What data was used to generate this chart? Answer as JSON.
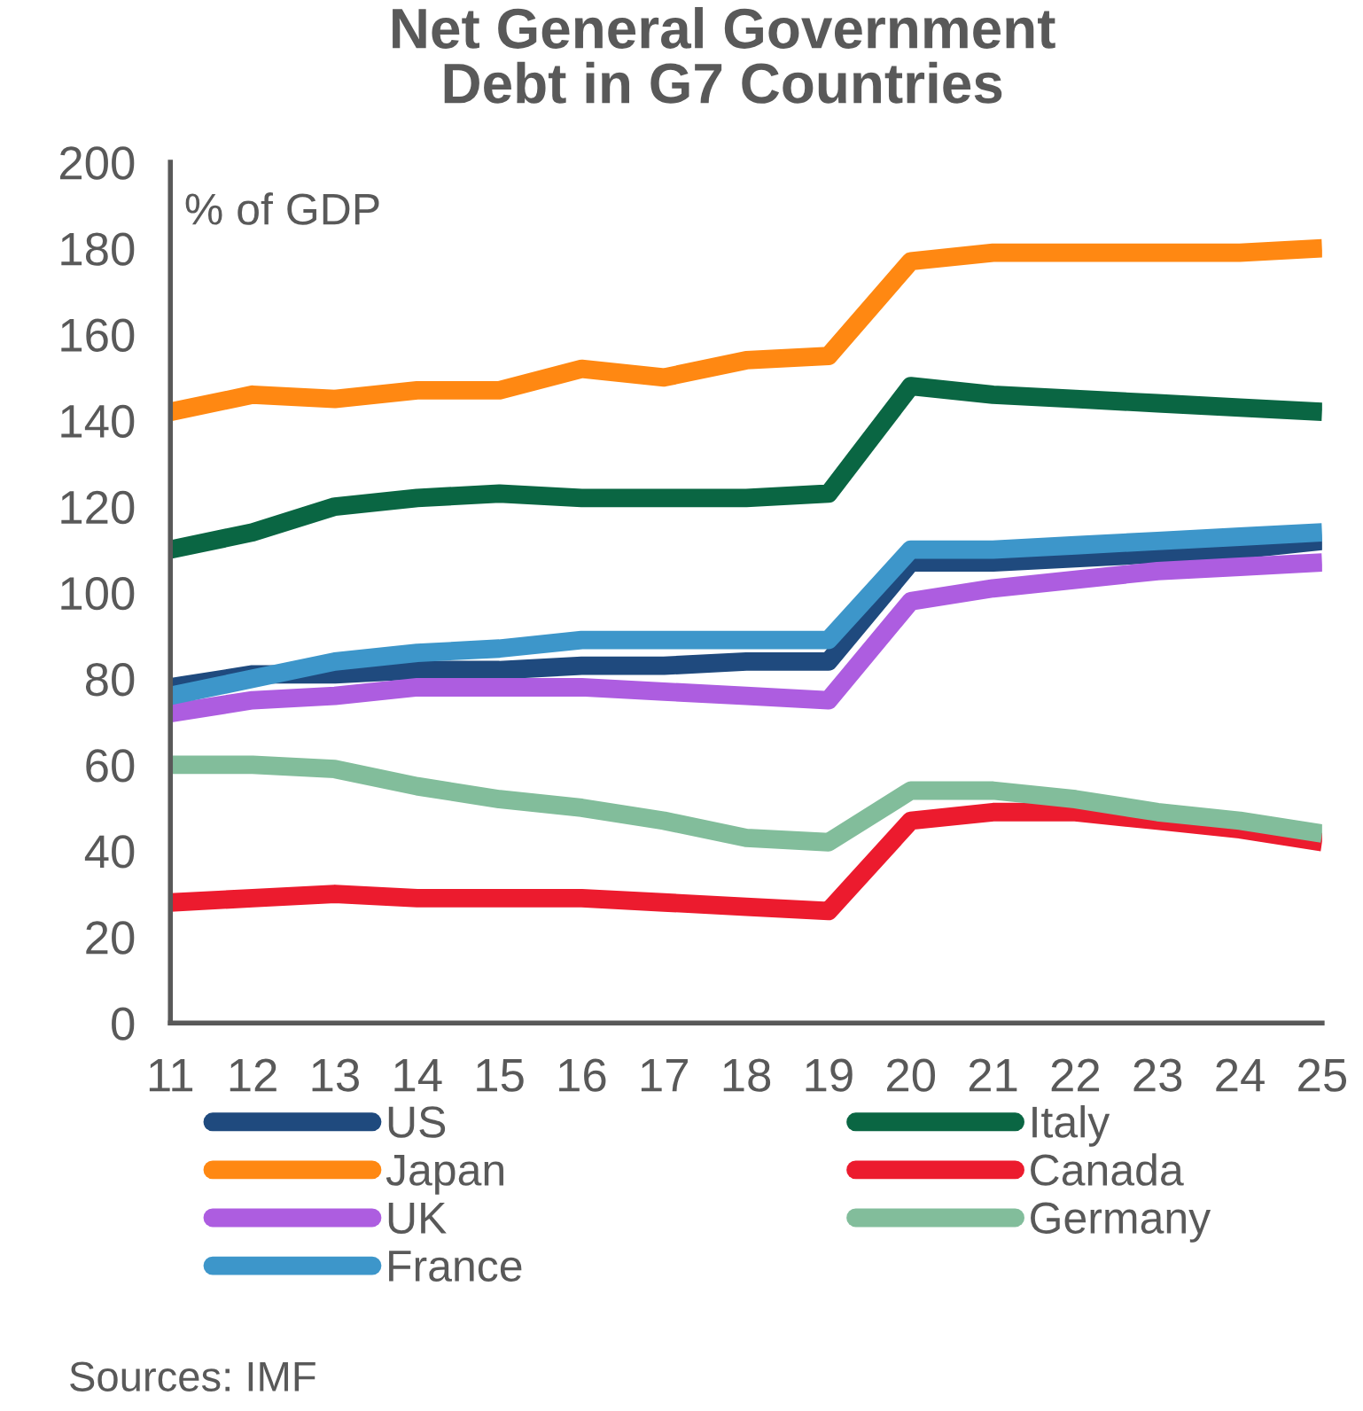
{
  "chart_data": {
    "type": "line",
    "title": "Net General Government\nDebt in G7 Countries",
    "ylabel": "% of GDP",
    "annotations": [
      "Sources: IMF"
    ],
    "x": [
      11,
      12,
      13,
      14,
      15,
      16,
      17,
      18,
      19,
      20,
      21,
      22,
      23,
      24,
      25
    ],
    "xlim": [
      11,
      25
    ],
    "xticks": [
      11,
      12,
      13,
      14,
      15,
      16,
      17,
      18,
      19,
      20,
      21,
      22,
      23,
      24,
      25
    ],
    "ylim": [
      0,
      200
    ],
    "yticks": [
      0,
      20,
      40,
      60,
      80,
      100,
      120,
      140,
      160,
      180,
      200
    ],
    "grid": false,
    "legend": "bottom",
    "line_style": "solid",
    "marker": "none",
    "series": [
      {
        "name": "US",
        "color": "#1f4a7e",
        "values": [
          78,
          81,
          81,
          82,
          82,
          83,
          83,
          84,
          84,
          107,
          107,
          108,
          109,
          110,
          112
        ]
      },
      {
        "name": "Italy",
        "color": "#0a6643",
        "values": [
          110,
          114,
          120,
          122,
          123,
          122,
          122,
          122,
          123,
          148,
          146,
          145,
          144,
          143,
          142
        ]
      },
      {
        "name": "Japan",
        "color": "#ff8812",
        "values": [
          142,
          146,
          145,
          147,
          147,
          152,
          150,
          154,
          155,
          177,
          179,
          179,
          179,
          179,
          180
        ]
      },
      {
        "name": "Canada",
        "color": "#ec1b2e",
        "values": [
          28,
          29,
          30,
          29,
          29,
          29,
          28,
          27,
          26,
          47,
          49,
          49,
          47,
          45,
          42
        ]
      },
      {
        "name": "UK",
        "color": "#ad5de0",
        "values": [
          72,
          75,
          76,
          78,
          78,
          78,
          77,
          76,
          75,
          98,
          101,
          103,
          105,
          106,
          107
        ]
      },
      {
        "name": "Germany",
        "color": "#82bd9b",
        "values": [
          60,
          60,
          59,
          55,
          52,
          50,
          47,
          43,
          42,
          54,
          54,
          52,
          49,
          47,
          44
        ]
      },
      {
        "name": "France",
        "color": "#3d96ca",
        "values": [
          76,
          80,
          84,
          86,
          87,
          89,
          89,
          89,
          89,
          110,
          110,
          111,
          112,
          113,
          114
        ]
      }
    ]
  }
}
